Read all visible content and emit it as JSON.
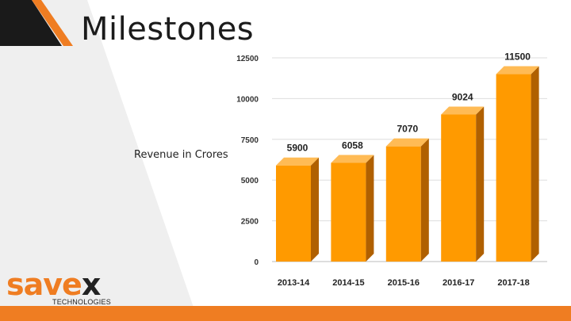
{
  "slide": {
    "title": "Milestones",
    "side_label": "Revenue in Crores",
    "logo": {
      "word_main": "save",
      "word_x": "x",
      "subtitle": "TECHNOLOGIES"
    }
  },
  "colors": {
    "accent": "#ef7d22",
    "bar_front": "#ff9a00",
    "bar_side": "#b06000",
    "bar_top": "#ffbb55",
    "panel_gray": "#efefef",
    "dark_corner": "#1a1a1a"
  },
  "chart_data": {
    "type": "bar",
    "categories": [
      "2013-14",
      "2014-15",
      "2015-16",
      "2016-17",
      "2017-18"
    ],
    "values": [
      5900,
      6058,
      7070,
      9024,
      11500
    ],
    "data_labels": [
      "5900",
      "6058",
      "7070",
      "9024",
      "11500"
    ],
    "title": "",
    "xlabel": "",
    "ylabel": "Revenue in Crores",
    "ylim": [
      0,
      12500
    ],
    "yticks": [
      0,
      2500,
      5000,
      7500,
      10000,
      12500
    ],
    "ytick_labels": [
      "0",
      "2500",
      "5000",
      "7500",
      "10000",
      "12500"
    ],
    "grid": true,
    "style": "3d-bar"
  }
}
